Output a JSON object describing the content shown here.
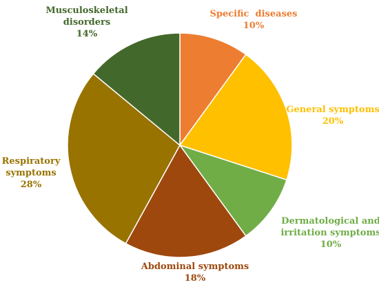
{
  "chart_data": {
    "type": "pie",
    "title": "",
    "start_angle_deg": 0,
    "direction": "clockwise",
    "slices": [
      {
        "label_lines": [
          "Specific  diseases"
        ],
        "pct_label": "10%",
        "value": 10,
        "color": "#ED7D31"
      },
      {
        "label_lines": [
          "General symptoms"
        ],
        "pct_label": "20%",
        "value": 20,
        "color": "#FFC000"
      },
      {
        "label_lines": [
          "Dermatological and",
          "irritation symptoms"
        ],
        "pct_label": "10%",
        "value": 10,
        "color": "#70AD47"
      },
      {
        "label_lines": [
          "Abdominal symptoms"
        ],
        "pct_label": "18%",
        "value": 18,
        "color": "#9E480E"
      },
      {
        "label_lines": [
          "Respiratory",
          "symptoms"
        ],
        "pct_label": "28%",
        "value": 28,
        "color": "#997300"
      },
      {
        "label_lines": [
          "Musculoskeletal",
          "disorders"
        ],
        "pct_label": "14%",
        "value": 14,
        "color": "#43682B"
      }
    ]
  }
}
